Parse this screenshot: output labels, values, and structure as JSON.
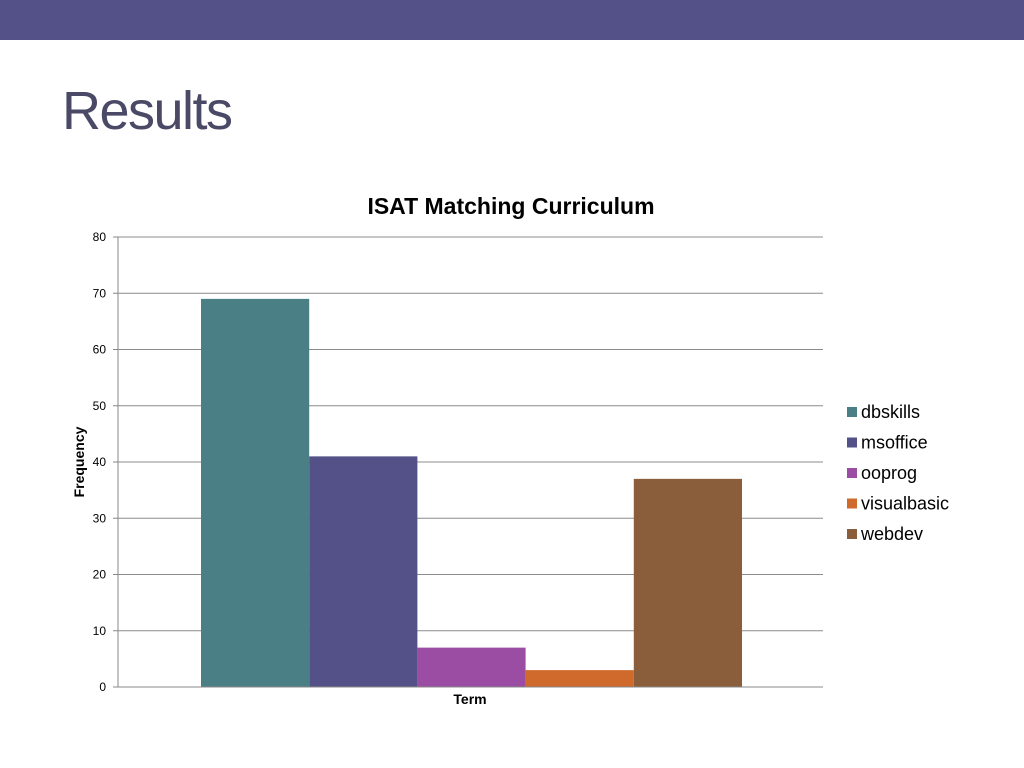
{
  "slide": {
    "title": "Results"
  },
  "theme": {
    "bar_color": "#535188",
    "title_color": "#4a4966"
  },
  "chart_data": {
    "type": "bar",
    "title": "ISAT Matching Curriculum",
    "xlabel": "Term",
    "ylabel": "Frequency",
    "ylim": [
      0,
      80
    ],
    "yticks": [
      0,
      10,
      20,
      30,
      40,
      50,
      60,
      70,
      80
    ],
    "grid": true,
    "legend_position": "right",
    "series": [
      {
        "name": "dbskills",
        "value": 69,
        "color": "#4a8085"
      },
      {
        "name": "msoffice",
        "value": 41,
        "color": "#535188"
      },
      {
        "name": "ooprog",
        "value": 7,
        "color": "#9b4da4"
      },
      {
        "name": "visualbasic",
        "value": 3,
        "color": "#cf6a2c"
      },
      {
        "name": "webdev",
        "value": 37,
        "color": "#8a5d3b"
      }
    ]
  }
}
